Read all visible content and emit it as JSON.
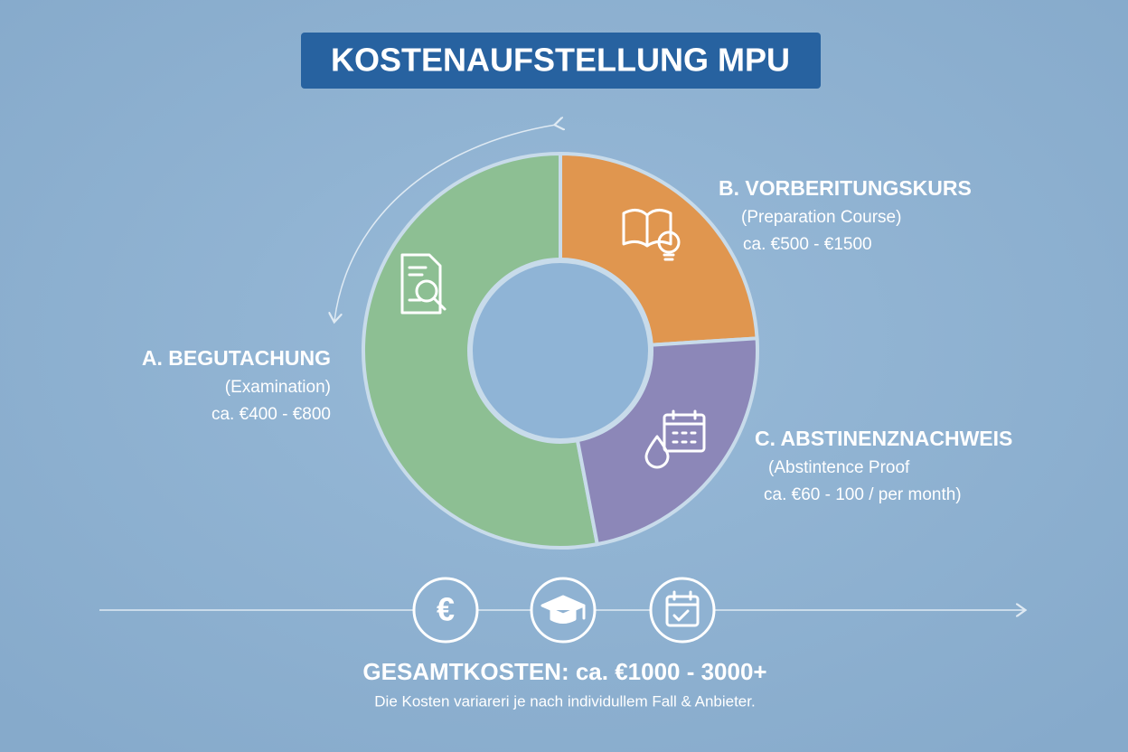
{
  "chart_data": {
    "type": "donut",
    "title": "KOSTENAUFSTELLUNG MPU",
    "categories": [
      "A. BEGUTACHUNG",
      "B. VORBERITUNGSKURS",
      "C. ABSTINENZNACHWEIS"
    ],
    "descriptions": [
      "(Examination)",
      "(Preparation Course)",
      "(Abstintence Proof"
    ],
    "costs": [
      "ca. €400 - €800",
      "ca. €500 - €1500",
      "ca. €60 - 100 / per month)"
    ],
    "values": [
      53,
      24,
      23
    ],
    "colors": [
      "#8dbf93",
      "#e0964f",
      "#8c87b8"
    ]
  },
  "footer": {
    "total": "GESAMTKOSTEN: ca. €1000 - 3000+",
    "note": "Die Kosten variareri je nach individullem Fall & Anbieter."
  }
}
